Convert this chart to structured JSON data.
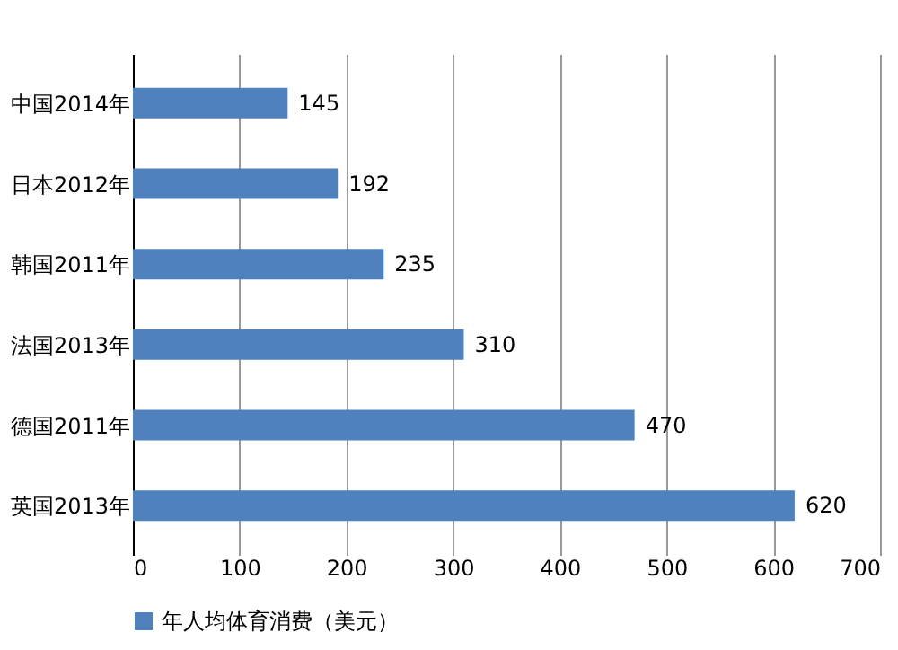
{
  "chart_data": {
    "type": "bar",
    "orientation": "horizontal",
    "categories": [
      "中国2014年",
      "日本2012年",
      "韩国2011年",
      "法国2013年",
      "德国2011年",
      "英国2013年"
    ],
    "series": [
      {
        "name": "年人均体育消费（美元）",
        "color": "#4f81bd",
        "values": [
          145,
          192,
          235,
          310,
          470,
          620
        ]
      }
    ],
    "xlim": [
      0,
      700
    ],
    "xticks": [
      0,
      100,
      200,
      300,
      400,
      500,
      600,
      700
    ],
    "grid": "x",
    "legend": "bottom",
    "data_labels": true
  }
}
